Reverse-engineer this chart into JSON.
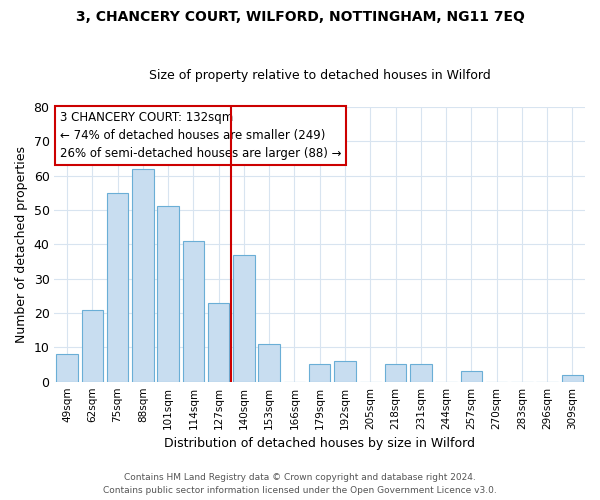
{
  "title": "3, CHANCERY COURT, WILFORD, NOTTINGHAM, NG11 7EQ",
  "subtitle": "Size of property relative to detached houses in Wilford",
  "xlabel": "Distribution of detached houses by size in Wilford",
  "ylabel": "Number of detached properties",
  "bar_labels": [
    "49sqm",
    "62sqm",
    "75sqm",
    "88sqm",
    "101sqm",
    "114sqm",
    "127sqm",
    "140sqm",
    "153sqm",
    "166sqm",
    "179sqm",
    "192sqm",
    "205sqm",
    "218sqm",
    "231sqm",
    "244sqm",
    "257sqm",
    "270sqm",
    "283sqm",
    "296sqm",
    "309sqm"
  ],
  "bar_heights": [
    8,
    21,
    55,
    62,
    51,
    41,
    23,
    37,
    11,
    0,
    5,
    6,
    0,
    5,
    5,
    0,
    3,
    0,
    0,
    0,
    2
  ],
  "bar_color": "#c8ddf0",
  "bar_edge_color": "#6aaed6",
  "ylim": [
    0,
    80
  ],
  "yticks": [
    0,
    10,
    20,
    30,
    40,
    50,
    60,
    70,
    80
  ],
  "property_label": "3 CHANCERY COURT: 132sqm",
  "annotation_line1": "← 74% of detached houses are smaller (249)",
  "annotation_line2": "26% of semi-detached houses are larger (88) →",
  "annotation_box_color": "#ffffff",
  "annotation_box_edge": "#cc0000",
  "vline_color": "#cc0000",
  "vline_x": 7.0,
  "footer1": "Contains HM Land Registry data © Crown copyright and database right 2024.",
  "footer2": "Contains public sector information licensed under the Open Government Licence v3.0.",
  "fig_bg_color": "#ffffff",
  "plot_bg_color": "#ffffff",
  "grid_color": "#d8e4f0",
  "title_fontsize": 10,
  "subtitle_fontsize": 9,
  "bar_width": 0.85
}
